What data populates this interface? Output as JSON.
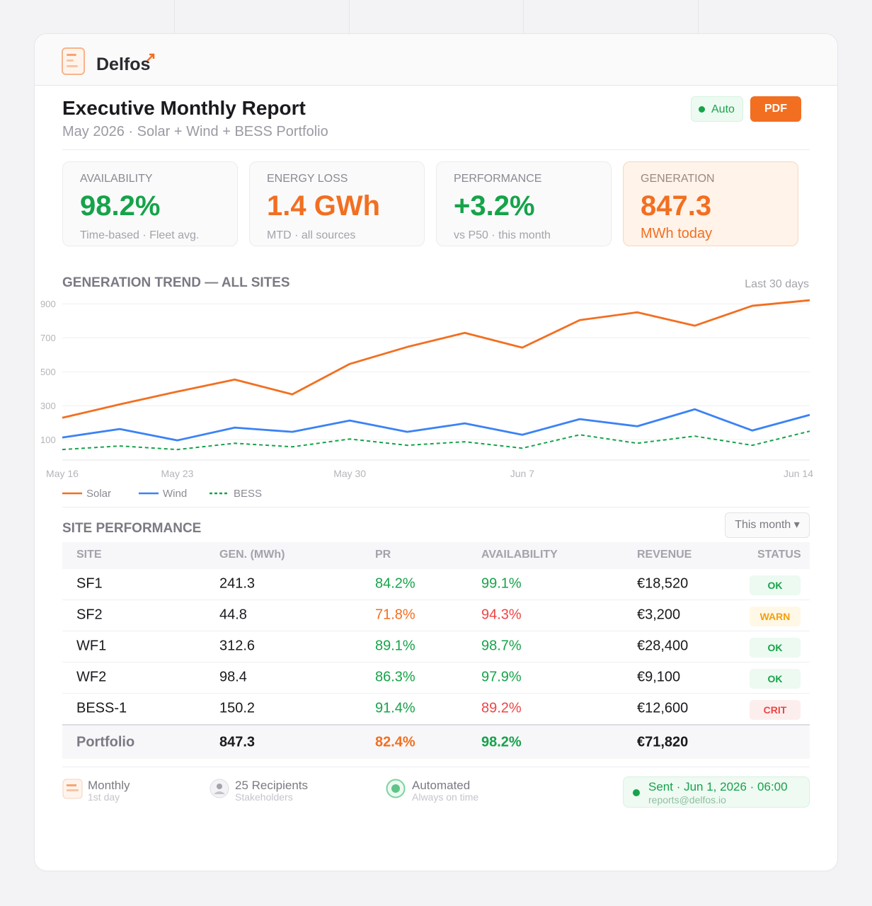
{
  "header": {
    "brand": "Delfos"
  },
  "report": {
    "title": "Executive Monthly Report",
    "subtitle": "May 2026 · Solar + Wind + BESS Portfolio",
    "badge": "Auto",
    "button": "PDF"
  },
  "kpis": [
    {
      "label": "AVAILABILITY",
      "value": "98.2%",
      "note": "Time-based · Fleet avg."
    },
    {
      "label": "ENERGY LOSS",
      "value": "1.4 GWh",
      "note": "MTD · all sources"
    },
    {
      "label": "PERFORMANCE",
      "value": "+3.2%",
      "note": "vs P50 · this month"
    },
    {
      "label": "GENERATION",
      "value": "847.3",
      "note": "MWh today"
    }
  ],
  "chart_data": {
    "type": "line",
    "title": "GENERATION TREND — ALL SITES",
    "subtitle": "Last 30 days",
    "categories": [
      "May 16",
      null,
      "May 23",
      null,
      null,
      "May 30",
      null,
      null,
      "Jun 7",
      null,
      null,
      null,
      null,
      "Jun 14"
    ],
    "series": [
      {
        "name": "Solar",
        "color": "#f26f21",
        "values": [
          229,
          308,
          383,
          454,
          367,
          546,
          646,
          729,
          642,
          804,
          850,
          771,
          888,
          921
        ]
      },
      {
        "name": "Wind",
        "color": "#3b82f6",
        "values": [
          113,
          163,
          96,
          171,
          146,
          213,
          146,
          196,
          129,
          221,
          179,
          279,
          154,
          246
        ]
      },
      {
        "name": "BESS",
        "color": "#16a34a",
        "style": "dashed",
        "values": [
          42,
          63,
          42,
          79,
          58,
          104,
          67,
          88,
          50,
          129,
          79,
          121,
          67,
          150
        ]
      }
    ],
    "ylim": [
      -20,
      930
    ],
    "yticks": [
      100,
      300,
      500,
      700,
      900
    ],
    "grid": true,
    "legend": "bottom-left"
  },
  "table": {
    "title": "SITE PERFORMANCE",
    "filter": "This month ▾",
    "columns": [
      "SITE",
      "GEN. (MWh)",
      "PR",
      "AVAILABILITY",
      "REVENUE",
      "STATUS"
    ],
    "rows": [
      [
        "SF1",
        "241.3",
        "84.2%",
        "99.1%",
        "€18,520",
        "OK"
      ],
      [
        "SF2",
        "44.8",
        "71.8%",
        "94.3%",
        "€3,200",
        "WARN"
      ],
      [
        "WF1",
        "312.6",
        "89.1%",
        "98.7%",
        "€28,400",
        "OK"
      ],
      [
        "WF2",
        "98.4",
        "86.3%",
        "97.9%",
        "€9,100",
        "OK"
      ],
      [
        "BESS-1",
        "150.2",
        "91.4%",
        "89.2%",
        "€12,600",
        "CRIT"
      ]
    ],
    "total": [
      "Portfolio",
      "847.3",
      "82.4%",
      "98.2%",
      "€71,820"
    ]
  },
  "footer": {
    "items": [
      {
        "title": "Monthly",
        "sub": "1st day"
      },
      {
        "title": "25 Recipients",
        "sub": "Stakeholders"
      },
      {
        "title": "Automated",
        "sub": "Always on time"
      }
    ],
    "sent": {
      "title": "Sent · Jun 1, 2026 · 06:00",
      "sub": "reports@delfos.io"
    }
  }
}
